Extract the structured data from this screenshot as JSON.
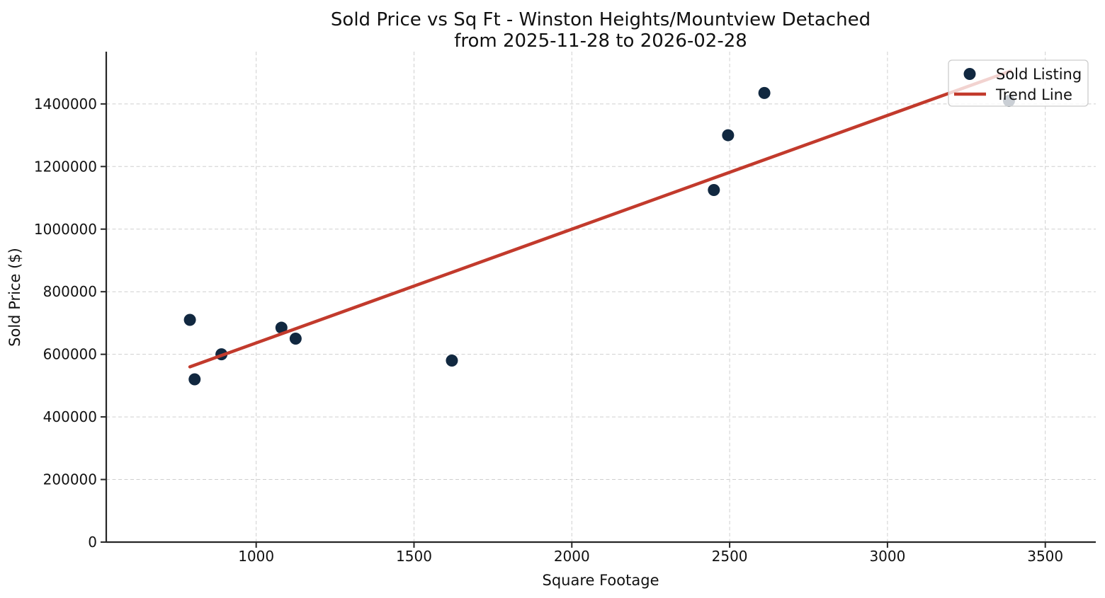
{
  "chart_data": {
    "type": "scatter",
    "title_line1": "Sold Price vs Sq Ft - Winston Heights/Mountview Detached",
    "title_line2": "from 2025-11-28 to 2026-02-28",
    "xlabel": "Square Footage",
    "ylabel": "Sold Price ($)",
    "xlim": [
      525,
      3660
    ],
    "ylim": [
      0,
      1567000
    ],
    "x_ticks": [
      1000,
      1500,
      2000,
      2500,
      3000,
      3500
    ],
    "y_ticks": [
      0,
      200000,
      400000,
      600000,
      800000,
      1000000,
      1200000,
      1400000
    ],
    "grid": true,
    "legend_position": "upper right",
    "colors": {
      "point": "#112840",
      "trend": "#c23a2c",
      "grid": "#cfcfcf",
      "axis": "#262626",
      "text": "#111111"
    },
    "series": [
      {
        "name": "Sold Listing",
        "type": "scatter",
        "color": "#112840",
        "points": [
          [
            790,
            710000
          ],
          [
            805,
            520000
          ],
          [
            890,
            600000
          ],
          [
            1080,
            685000
          ],
          [
            1125,
            650000
          ],
          [
            1620,
            580000
          ],
          [
            2450,
            1125000
          ],
          [
            2495,
            1300000
          ],
          [
            2610,
            1435000
          ],
          [
            3385,
            1410000
          ]
        ]
      },
      {
        "name": "Trend Line",
        "type": "line",
        "color": "#c23a2c",
        "points": [
          [
            790,
            560000
          ],
          [
            3390,
            1505000
          ]
        ]
      }
    ]
  }
}
